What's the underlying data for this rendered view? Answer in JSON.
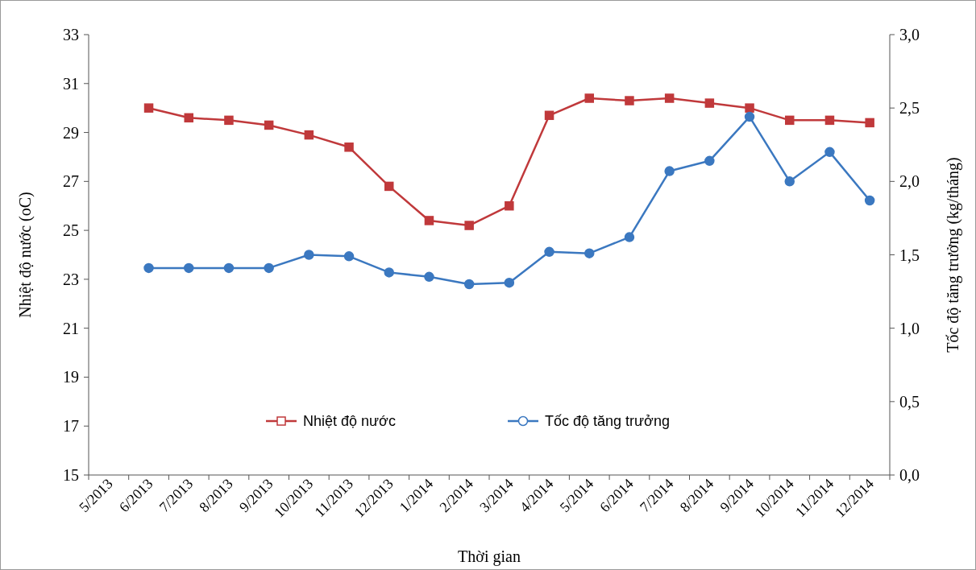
{
  "chart_data": {
    "type": "line",
    "xlabel": "Thời gian",
    "ylabel": "Nhiệt độ nước (oC)",
    "y2label": "Tốc độ tăng trưởng (kg/tháng)",
    "categories": [
      "5/2013",
      "6/2013",
      "7/2013",
      "8/2013",
      "9/2013",
      "10/2013",
      "11/2013",
      "12/2013",
      "1/2014",
      "2/2014",
      "3/2014",
      "4/2014",
      "5/2014",
      "6/2014",
      "7/2014",
      "8/2014",
      "9/2014",
      "10/2014",
      "11/2014",
      "12/2014"
    ],
    "series": [
      {
        "name": "Nhiệt độ nước",
        "color": "#c0393b",
        "marker": "square",
        "values": [
          null,
          30.0,
          29.6,
          29.5,
          29.3,
          28.9,
          28.4,
          26.8,
          25.4,
          25.2,
          26.0,
          29.7,
          30.4,
          30.3,
          30.4,
          30.2,
          30.0,
          29.5,
          29.5,
          29.4
        ]
      },
      {
        "name": "Tốc độ tăng trưởng",
        "color": "#3b78c0",
        "marker": "circle",
        "axis": "y2",
        "values": [
          null,
          1.41,
          1.41,
          1.41,
          1.41,
          1.5,
          1.49,
          1.38,
          1.35,
          1.3,
          1.31,
          1.52,
          1.51,
          1.62,
          2.07,
          2.14,
          2.44,
          2.0,
          2.2,
          1.87
        ]
      }
    ],
    "ylim": [
      15,
      33
    ],
    "yticks": [
      15,
      17,
      19,
      21,
      23,
      25,
      27,
      29,
      31,
      33
    ],
    "y2lim": [
      0,
      3
    ],
    "y2ticks": [
      {
        "value": 0,
        "label": "0,0"
      },
      {
        "value": 0.5,
        "label": "0,5"
      },
      {
        "value": 1,
        "label": "1,0"
      },
      {
        "value": 1.5,
        "label": "1,5"
      },
      {
        "value": 2,
        "label": "2,0"
      },
      {
        "value": 2.5,
        "label": "2,5"
      },
      {
        "value": 3,
        "label": "3,0"
      }
    ],
    "legend": "bottom",
    "grid": false
  }
}
